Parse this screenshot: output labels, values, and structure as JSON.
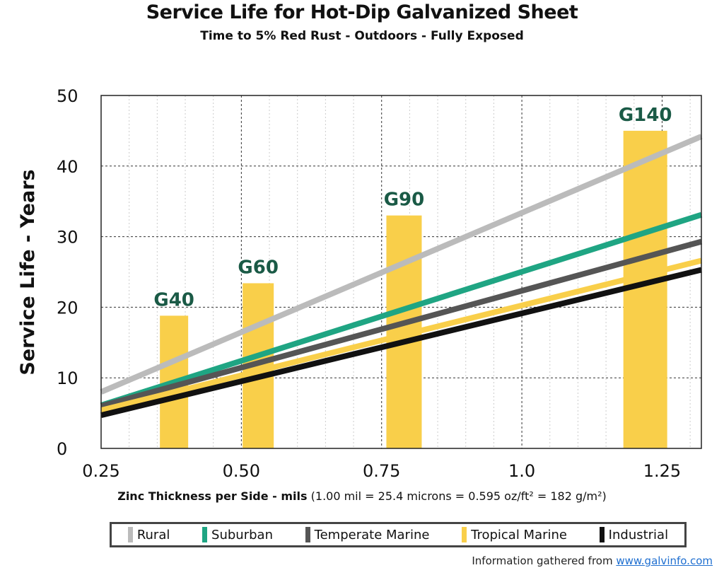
{
  "chart_data": {
    "type": "bar+line",
    "title": "Service Life for Hot-Dip Galvanized Sheet",
    "subtitle": "Time to 5% Red Rust - Outdoors - Fully Exposed",
    "ylabel": "Service Life - Years",
    "xlabel": "Zinc Thickness per Side - mils",
    "xlabel_note": "(1.00 mil = 25.4 microns = 0.595 oz/ft² = 182 g/m²)",
    "xlim": [
      0.25,
      1.32
    ],
    "ylim": [
      0,
      50
    ],
    "xticks": [
      "0.25",
      "0.50",
      "0.75",
      "1.0",
      "1.25"
    ],
    "xtick_values": [
      0.25,
      0.5,
      0.75,
      1.0,
      1.25
    ],
    "yticks": [
      "0",
      "10",
      "20",
      "30",
      "40",
      "50"
    ],
    "ytick_values": [
      0,
      10,
      20,
      30,
      40,
      50
    ],
    "grid": true,
    "bars": [
      {
        "label": "G40",
        "x": 0.38,
        "value": 18.8
      },
      {
        "label": "G60",
        "x": 0.53,
        "value": 23.4
      },
      {
        "label": "G90",
        "x": 0.79,
        "value": 33.0
      },
      {
        "label": "G140",
        "x": 1.22,
        "value": 45.0
      }
    ],
    "series": [
      {
        "name": "Rural",
        "color": "#bbbbbb",
        "x": [
          0.25,
          1.32
        ],
        "values": [
          8.0,
          44.2
        ]
      },
      {
        "name": "Suburban",
        "color": "#1fa583",
        "x": [
          0.25,
          1.32
        ],
        "values": [
          6.1,
          33.1
        ]
      },
      {
        "name": "Temperate Marine",
        "color": "#555555",
        "x": [
          0.25,
          1.32
        ],
        "values": [
          6.0,
          29.3
        ]
      },
      {
        "name": "Tropical Marine",
        "color": "#f9cf4a",
        "x": [
          0.25,
          1.32
        ],
        "values": [
          5.4,
          26.6
        ]
      },
      {
        "name": "Industrial",
        "color": "#111111",
        "x": [
          0.25,
          1.32
        ],
        "values": [
          4.7,
          25.3
        ]
      }
    ],
    "bar_color": "#f9cf4a",
    "bar_label_color": "#1a5a46",
    "legend_position": "bottom"
  },
  "credit": {
    "text": "Information gathered from",
    "link": "www.galvinfo.com"
  }
}
